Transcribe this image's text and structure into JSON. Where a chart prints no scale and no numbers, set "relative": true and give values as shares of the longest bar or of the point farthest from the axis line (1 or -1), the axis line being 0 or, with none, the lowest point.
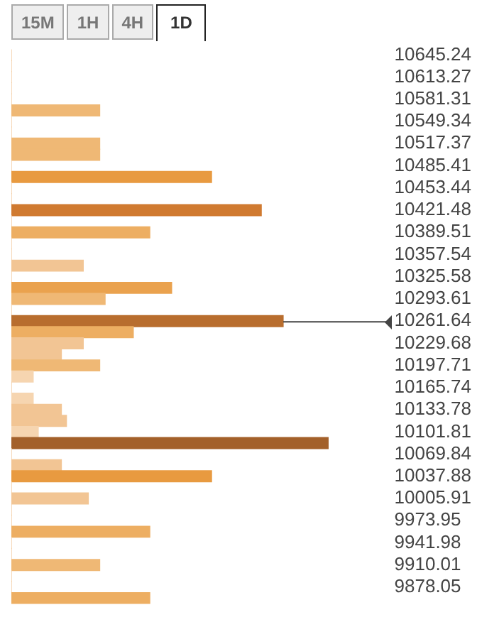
{
  "chart_data": {
    "type": "bar",
    "orientation": "horizontal",
    "relative": true,
    "grid": false,
    "legend": false,
    "annotations": [
      "15M",
      "1H",
      "4H",
      "1D"
    ],
    "categories": [
      "10645.24",
      null,
      "10613.27",
      null,
      "10581.31",
      null,
      "10549.34",
      null,
      "10517.37",
      null,
      "10485.41",
      null,
      "10453.44",
      null,
      "10421.48",
      null,
      "10389.51",
      null,
      "10357.54",
      null,
      "10325.58",
      null,
      "10293.61",
      null,
      "10261.64",
      null,
      "10229.68",
      null,
      "10197.71",
      null,
      "10165.74",
      null,
      "10133.78",
      null,
      "10101.81",
      null,
      "10069.84",
      null,
      "10037.88",
      null,
      "10005.91",
      null,
      "9973.95",
      null,
      "9941.98",
      null,
      "9910.01",
      null,
      "9878.05",
      null
    ],
    "values": [
      0,
      0,
      0,
      0,
      0,
      0.279,
      0,
      0,
      0.279,
      0.279,
      0,
      0.632,
      0,
      0,
      0.789,
      0,
      0.437,
      0,
      0,
      0.227,
      0,
      0.506,
      0.296,
      0,
      0.858,
      0.385,
      0.227,
      0.158,
      0.279,
      0.069,
      0,
      0.069,
      0.158,
      0.174,
      0.085,
      1,
      0,
      0.158,
      0.632,
      0,
      0.243,
      0,
      0,
      0.437,
      0,
      0,
      0.279,
      0,
      0,
      0.437
    ],
    "colors": [
      "#f2c594",
      "#f2c594",
      "#f2c594",
      "#f2c594",
      "#f2c594",
      "#efb875",
      "#f2c594",
      "#f2c594",
      "#efb875",
      "#efb875",
      "#f2c594",
      "#e89a40",
      "#f2c594",
      "#f2c594",
      "#d07a30",
      "#f2c594",
      "#edae62",
      "#f2c594",
      "#f2c594",
      "#f2c594",
      "#f2c594",
      "#eaa24e",
      "#efb875",
      "#f2c594",
      "#b86d2e",
      "#edae62",
      "#f2c594",
      "#f2c594",
      "#efb875",
      "#f6d5b0",
      "#f2c594",
      "#f6d5b0",
      "#f2c594",
      "#f2c594",
      "#f6d5b0",
      "#a3602a",
      "#f2c594",
      "#f2c594",
      "#e89a40",
      "#f2c594",
      "#f2c594",
      "#f2c594",
      "#f2c594",
      "#edae62",
      "#f2c594",
      "#f2c594",
      "#efb875",
      "#f2c594",
      "#f2c594",
      "#edae62"
    ],
    "ref_lines": [
      {
        "axis": "y",
        "value": "10261.64",
        "color": "#444444"
      }
    ]
  }
}
